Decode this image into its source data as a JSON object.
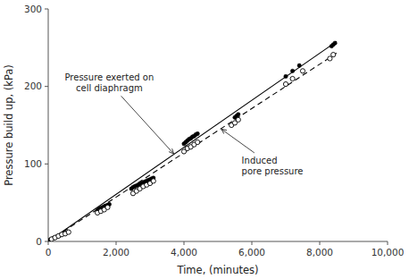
{
  "chart_data": {
    "type": "scatter",
    "xlabel": "Time, (minutes)",
    "ylabel": "Pressure build up, (kPa)",
    "xlim": [
      0,
      10000
    ],
    "ylim": [
      0,
      300
    ],
    "xticks": [
      0,
      {
        "value": 2000,
        "label": "2,000"
      },
      {
        "value": 4000,
        "label": "4,000"
      },
      {
        "value": 6000,
        "label": "6,000"
      },
      {
        "value": 8000,
        "label": "8,000"
      },
      {
        "value": 10000,
        "label": "10,000"
      }
    ],
    "yticks": [
      0,
      100,
      200,
      300
    ],
    "grid": false,
    "series": [
      {
        "type": "line",
        "line_style": "solid",
        "color": "#000000",
        "x": [
          0,
          8500
        ],
        "values": [
          0,
          258
        ]
      },
      {
        "type": "line",
        "line_style": "dashed",
        "color": "#000000",
        "x": [
          0,
          8500
        ],
        "values": [
          0,
          243
        ]
      },
      {
        "type": "scatter",
        "marker": "filled-circle",
        "color": "#000000",
        "x": [
          50,
          100,
          150,
          200,
          250,
          300,
          350,
          400,
          450,
          500,
          1450,
          1500,
          1550,
          1600,
          1650,
          1700,
          1750,
          1800,
          2450,
          2500,
          2550,
          2600,
          2650,
          2700,
          2750,
          2800,
          2850,
          2900,
          2950,
          3000,
          3050,
          3100,
          4000,
          4050,
          4100,
          4150,
          4200,
          4250,
          4300,
          4350,
          4400,
          5500,
          5550,
          5600,
          7000,
          7200,
          7400,
          8350,
          8400,
          8450
        ],
        "values": [
          2,
          3,
          4,
          5,
          6,
          7,
          8,
          9,
          10,
          11,
          40,
          42,
          43,
          44,
          45,
          46,
          47,
          48,
          68,
          70,
          71,
          72,
          73,
          74,
          75,
          76,
          77,
          78,
          79,
          80,
          81,
          82,
          126,
          128,
          130,
          132,
          133,
          135,
          136,
          138,
          139,
          160,
          162,
          164,
          213,
          220,
          227,
          252,
          254,
          256
        ]
      },
      {
        "type": "scatter",
        "marker": "open-circle",
        "color": "#000000",
        "x": [
          100,
          200,
          300,
          400,
          500,
          600,
          1450,
          1550,
          1650,
          1750,
          2500,
          2600,
          2700,
          2800,
          2900,
          3000,
          3100,
          4000,
          4100,
          4200,
          4300,
          4400,
          5400,
          5500,
          5600,
          7000,
          7200,
          7500,
          8300,
          8400
        ],
        "values": [
          3,
          5,
          7,
          9,
          10,
          12,
          37,
          39,
          41,
          44,
          62,
          65,
          68,
          71,
          73,
          75,
          78,
          116,
          120,
          122,
          125,
          128,
          150,
          153,
          157,
          203,
          210,
          220,
          236,
          241
        ]
      }
    ],
    "annotations": [
      {
        "text": "Pressure exerted on\ncell diaphragm",
        "xy": [
          3700,
          113
        ],
        "xytext": [
          1800,
          190
        ]
      },
      {
        "text": "Induced\npore pressure",
        "xy": [
          5100,
          145
        ],
        "xytext": [
          5700,
          112
        ]
      }
    ]
  }
}
